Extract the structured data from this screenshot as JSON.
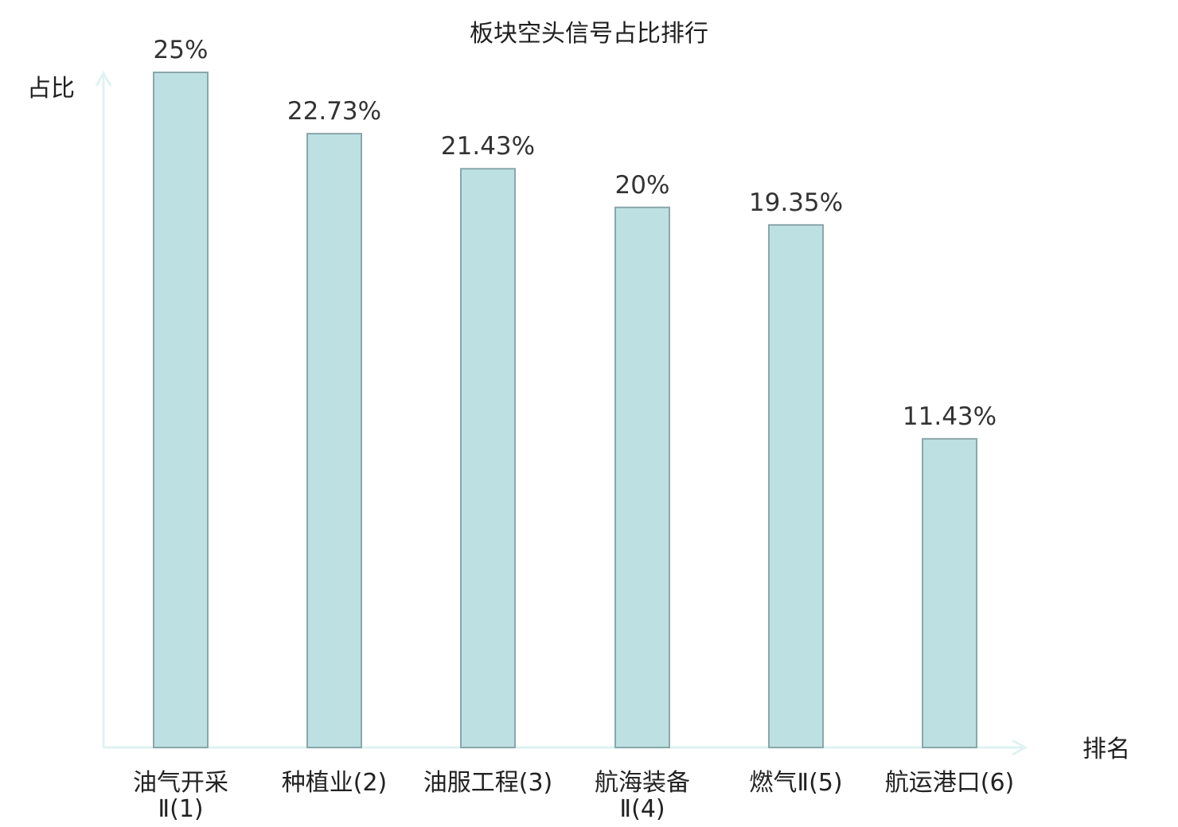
{
  "chart_data": {
    "type": "bar",
    "title": "板块空头信号占比排行",
    "xlabel": "排名",
    "ylabel": "占比",
    "categories": [
      [
        "油气开采",
        "Ⅱ(1)"
      ],
      [
        "种植业(2)"
      ],
      [
        "油服工程(3)"
      ],
      [
        "航海装备",
        "Ⅱ(4)"
      ],
      [
        "燃气Ⅱ(5)"
      ],
      [
        "航运港口(6)"
      ]
    ],
    "values": [
      25,
      22.73,
      21.43,
      20,
      19.35,
      11.43
    ],
    "value_labels": [
      "25%",
      "22.73%",
      "21.43%",
      "20%",
      "19.35%",
      "11.43%"
    ],
    "ylim": [
      0,
      25
    ],
    "grid": false,
    "legend": "none",
    "highlight_index": 5,
    "colors": {
      "bar_fill": "#bde0e3",
      "bar_stroke": "#8aa7aa",
      "axis": "#dff3f1",
      "label_normal": "#222222",
      "label_highlight": "#e31a1c"
    }
  }
}
